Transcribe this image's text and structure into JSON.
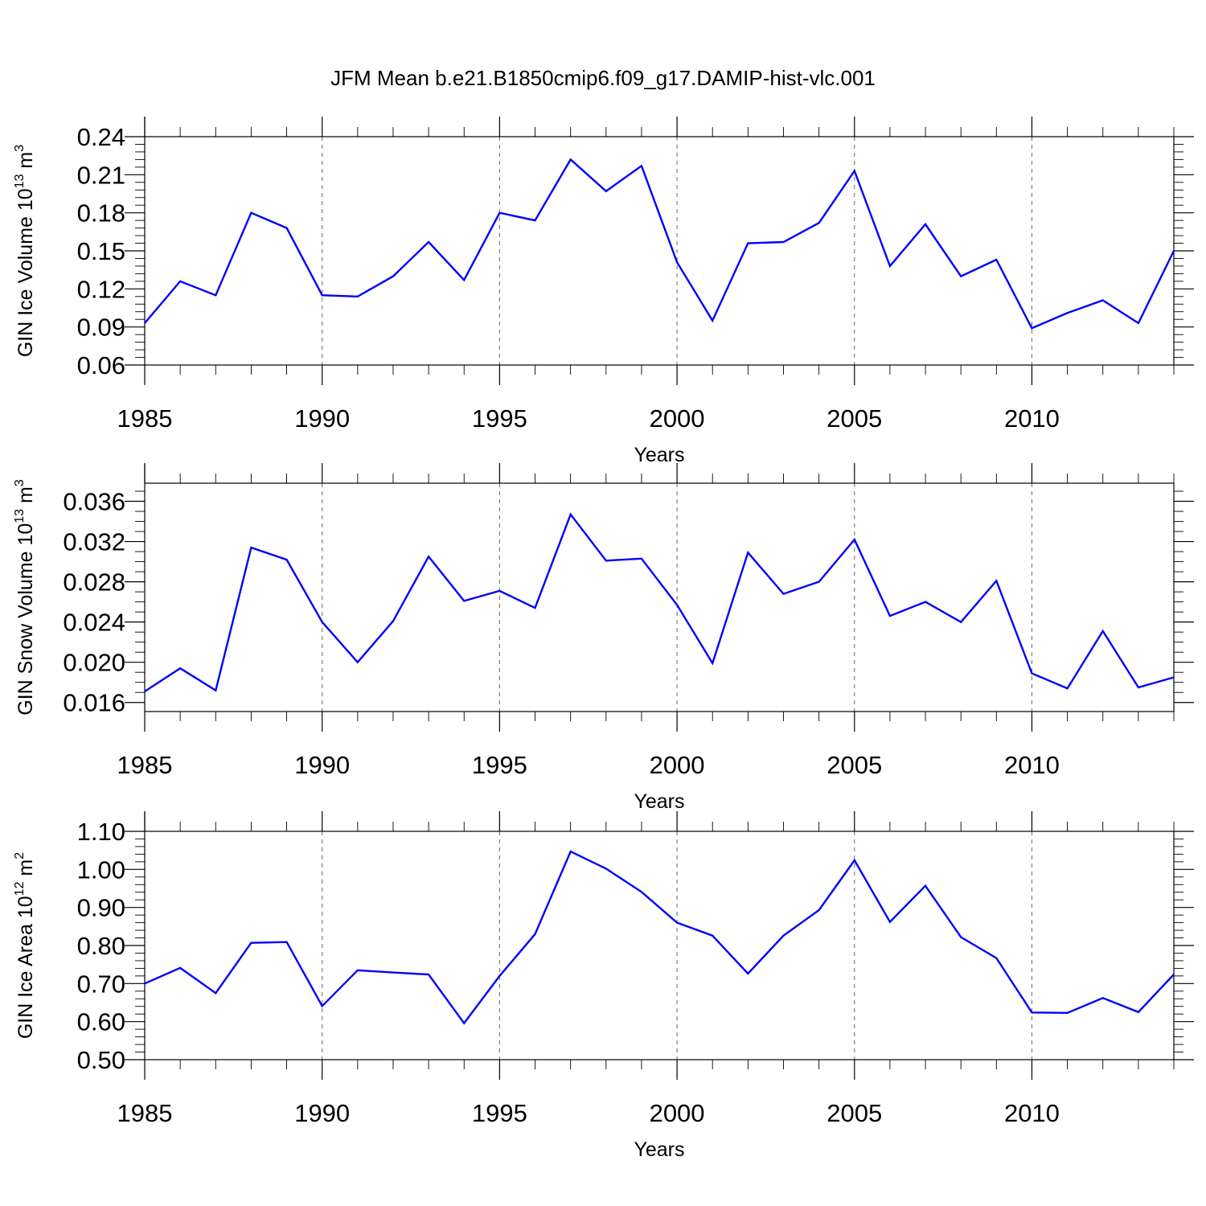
{
  "figure_title": "JFM Mean b.e21.B1850cmip6.f09_g17.DAMIP-hist-vlc.001",
  "colors": {
    "line": "#0000ff",
    "frame": "#000000",
    "grid": "#777777"
  },
  "chart_data": [
    {
      "type": "line",
      "title": "JFM Mean b.e21.B1850cmip6.f09_g17.DAMIP-hist-vlc.001",
      "xlabel": "Years",
      "ylabel": "GIN Ice Volume 10",
      "ylabel_exp": "13",
      "ylabel_unit": " m",
      "ylabel_unit_exp": "3",
      "xlim": [
        1985,
        2014
      ],
      "ylim": [
        0.06,
        0.24
      ],
      "x_ticks": [
        "1985",
        "1990",
        "1995",
        "2000",
        "2005",
        "2010"
      ],
      "y_ticks": [
        "0.06",
        "0.09",
        "0.12",
        "0.15",
        "0.18",
        "0.21",
        "0.24"
      ],
      "grid": "dashed vertical at 1990, 1995, 2000, 2005, 2010",
      "series": [
        {
          "name": "GIN Ice Volume",
          "x": [
            1985,
            1986,
            1987,
            1988,
            1989,
            1990,
            1991,
            1992,
            1993,
            1994,
            1995,
            1996,
            1997,
            1998,
            1999,
            2000,
            2001,
            2002,
            2003,
            2004,
            2005,
            2006,
            2007,
            2008,
            2009,
            2010,
            2011,
            2012,
            2013,
            2014
          ],
          "values": [
            0.093,
            0.126,
            0.115,
            0.18,
            0.168,
            0.115,
            0.114,
            0.13,
            0.157,
            0.127,
            0.18,
            0.174,
            0.222,
            0.197,
            0.217,
            0.141,
            0.095,
            0.156,
            0.157,
            0.172,
            0.213,
            0.138,
            0.171,
            0.13,
            0.143,
            0.089,
            0.101,
            0.111,
            0.093,
            0.15
          ]
        }
      ]
    },
    {
      "type": "line",
      "xlabel": "Years",
      "ylabel": "GIN Snow Volume 10",
      "ylabel_exp": "13",
      "ylabel_unit": " m",
      "ylabel_unit_exp": "3",
      "xlim": [
        1985,
        2014
      ],
      "ylim": [
        0.0151,
        0.0378
      ],
      "x_ticks": [
        "1985",
        "1990",
        "1995",
        "2000",
        "2005",
        "2010"
      ],
      "y_ticks": [
        "0.016",
        "0.020",
        "0.024",
        "0.028",
        "0.032",
        "0.036"
      ],
      "grid": "dashed vertical at 1990, 1995, 2000, 2005, 2010",
      "series": [
        {
          "name": "GIN Snow Volume",
          "x": [
            1985,
            1986,
            1987,
            1988,
            1989,
            1990,
            1991,
            1992,
            1993,
            1994,
            1995,
            1996,
            1997,
            1998,
            1999,
            2000,
            2001,
            2002,
            2003,
            2004,
            2005,
            2006,
            2007,
            2008,
            2009,
            2010,
            2011,
            2012,
            2013,
            2014
          ],
          "values": [
            0.0171,
            0.0194,
            0.0172,
            0.0314,
            0.0302,
            0.024,
            0.02,
            0.0241,
            0.0305,
            0.0261,
            0.0271,
            0.0254,
            0.0347,
            0.0301,
            0.0303,
            0.0257,
            0.0199,
            0.0309,
            0.0268,
            0.028,
            0.0322,
            0.0246,
            0.026,
            0.024,
            0.0281,
            0.0189,
            0.0174,
            0.0231,
            0.0175,
            0.0185
          ]
        }
      ]
    },
    {
      "type": "line",
      "xlabel": "Years",
      "ylabel": "GIN Ice Area 10",
      "ylabel_exp": "12",
      "ylabel_unit": " m",
      "ylabel_unit_exp": "2",
      "xlim": [
        1985,
        2014
      ],
      "ylim": [
        0.5,
        1.1
      ],
      "x_ticks": [
        "1985",
        "1990",
        "1995",
        "2000",
        "2005",
        "2010"
      ],
      "y_ticks": [
        "0.50",
        "0.60",
        "0.70",
        "0.80",
        "0.90",
        "1.00",
        "1.10"
      ],
      "grid": "dashed vertical at 1990, 1995, 2000, 2005, 2010",
      "series": [
        {
          "name": "GIN Ice Area",
          "x": [
            1985,
            1986,
            1987,
            1988,
            1989,
            1990,
            1991,
            1992,
            1993,
            1994,
            1995,
            1996,
            1997,
            1998,
            1999,
            2000,
            2001,
            2002,
            2003,
            2004,
            2005,
            2006,
            2007,
            2008,
            2009,
            2010,
            2011,
            2012,
            2013,
            2014
          ],
          "values": [
            0.7,
            0.741,
            0.675,
            0.807,
            0.809,
            0.641,
            0.735,
            0.729,
            0.724,
            0.596,
            0.72,
            0.83,
            1.047,
            1.002,
            0.941,
            0.86,
            0.826,
            0.726,
            0.826,
            0.893,
            1.024,
            0.862,
            0.957,
            0.822,
            0.767,
            0.624,
            0.623,
            0.662,
            0.625,
            0.724
          ]
        }
      ]
    }
  ]
}
